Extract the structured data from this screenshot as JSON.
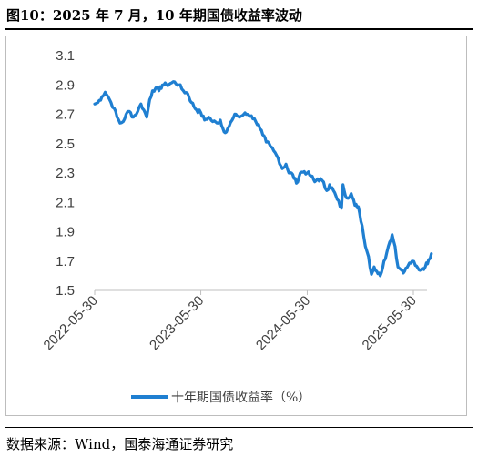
{
  "header": {
    "title": "图10：2025 年 7 月，10 年期国债收益率波动"
  },
  "footer": {
    "source": "数据来源：Wind，国泰海通证券研究"
  },
  "colors": {
    "series": "#1f7fd1",
    "axis": "#bfbfbf",
    "text": "#404040"
  },
  "chart_data": {
    "type": "line",
    "title": "",
    "xlabel": "",
    "ylabel": "",
    "ylim": [
      1.5,
      3.1
    ],
    "yticks": [
      "3.1",
      "2.9",
      "2.7",
      "2.5",
      "2.3",
      "2.1",
      "1.9",
      "1.7",
      "1.5"
    ],
    "xticks": [
      "2022-05-30",
      "2023-05-30",
      "2024-05-30",
      "2025-05-30"
    ],
    "xlim": [
      "2022-05-30",
      "2025-07-31"
    ],
    "grid": false,
    "legend": "bottom",
    "series": [
      {
        "name": "十年期国债收益率（%）",
        "points": [
          [
            "2022-05-30",
            2.77
          ],
          [
            "2022-06-10",
            2.78
          ],
          [
            "2022-06-24",
            2.82
          ],
          [
            "2022-07-05",
            2.85
          ],
          [
            "2022-07-15",
            2.82
          ],
          [
            "2022-07-25",
            2.78
          ],
          [
            "2022-08-05",
            2.74
          ],
          [
            "2022-08-15",
            2.68
          ],
          [
            "2022-08-25",
            2.64
          ],
          [
            "2022-09-05",
            2.65
          ],
          [
            "2022-09-15",
            2.7
          ],
          [
            "2022-09-26",
            2.72
          ],
          [
            "2022-10-10",
            2.68
          ],
          [
            "2022-10-25",
            2.72
          ],
          [
            "2022-11-05",
            2.77
          ],
          [
            "2022-11-15",
            2.73
          ],
          [
            "2022-11-25",
            2.68
          ],
          [
            "2022-12-05",
            2.8
          ],
          [
            "2022-12-15",
            2.86
          ],
          [
            "2022-12-26",
            2.88
          ],
          [
            "2023-01-06",
            2.86
          ],
          [
            "2023-01-18",
            2.9
          ],
          [
            "2023-02-01",
            2.9
          ],
          [
            "2023-02-15",
            2.91
          ],
          [
            "2023-03-01",
            2.92
          ],
          [
            "2023-03-15",
            2.9
          ],
          [
            "2023-03-31",
            2.86
          ],
          [
            "2023-04-15",
            2.84
          ],
          [
            "2023-04-28",
            2.78
          ],
          [
            "2023-05-15",
            2.73
          ],
          [
            "2023-05-30",
            2.71
          ],
          [
            "2023-06-12",
            2.66
          ],
          [
            "2023-06-26",
            2.68
          ],
          [
            "2023-07-10",
            2.65
          ],
          [
            "2023-07-25",
            2.64
          ],
          [
            "2023-08-05",
            2.66
          ],
          [
            "2023-08-18",
            2.58
          ],
          [
            "2023-08-30",
            2.6
          ],
          [
            "2023-09-15",
            2.66
          ],
          [
            "2023-09-28",
            2.7
          ],
          [
            "2023-10-10",
            2.68
          ],
          [
            "2023-10-25",
            2.7
          ],
          [
            "2023-11-06",
            2.7
          ],
          [
            "2023-11-20",
            2.69
          ],
          [
            "2023-12-05",
            2.65
          ],
          [
            "2023-12-15",
            2.63
          ],
          [
            "2023-12-29",
            2.56
          ],
          [
            "2024-01-10",
            2.51
          ],
          [
            "2024-01-25",
            2.48
          ],
          [
            "2024-02-05",
            2.45
          ],
          [
            "2024-02-20",
            2.4
          ],
          [
            "2024-03-05",
            2.33
          ],
          [
            "2024-03-18",
            2.36
          ],
          [
            "2024-03-28",
            2.3
          ],
          [
            "2024-04-10",
            2.29
          ],
          [
            "2024-04-23",
            2.23
          ],
          [
            "2024-05-06",
            2.3
          ],
          [
            "2024-05-20",
            2.31
          ],
          [
            "2024-05-30",
            2.3
          ],
          [
            "2024-06-12",
            2.28
          ],
          [
            "2024-06-25",
            2.24
          ],
          [
            "2024-07-05",
            2.26
          ],
          [
            "2024-07-20",
            2.25
          ],
          [
            "2024-08-05",
            2.18
          ],
          [
            "2024-08-15",
            2.22
          ],
          [
            "2024-08-28",
            2.18
          ],
          [
            "2024-09-10",
            2.12
          ],
          [
            "2024-09-25",
            2.06
          ],
          [
            "2024-09-30",
            2.22
          ],
          [
            "2024-10-12",
            2.13
          ],
          [
            "2024-10-28",
            2.16
          ],
          [
            "2024-11-10",
            2.08
          ],
          [
            "2024-11-22",
            2.07
          ],
          [
            "2024-12-05",
            1.94
          ],
          [
            "2024-12-16",
            1.8
          ],
          [
            "2024-12-27",
            1.73
          ],
          [
            "2025-01-06",
            1.61
          ],
          [
            "2025-01-15",
            1.66
          ],
          [
            "2025-01-24",
            1.63
          ],
          [
            "2025-02-05",
            1.6
          ],
          [
            "2025-02-18",
            1.7
          ],
          [
            "2025-02-28",
            1.76
          ],
          [
            "2025-03-10",
            1.83
          ],
          [
            "2025-03-18",
            1.88
          ],
          [
            "2025-03-28",
            1.8
          ],
          [
            "2025-04-07",
            1.66
          ],
          [
            "2025-04-18",
            1.64
          ],
          [
            "2025-04-30",
            1.63
          ],
          [
            "2025-05-12",
            1.67
          ],
          [
            "2025-05-26",
            1.7
          ],
          [
            "2025-06-06",
            1.67
          ],
          [
            "2025-06-18",
            1.64
          ],
          [
            "2025-06-30",
            1.65
          ],
          [
            "2025-07-10",
            1.66
          ],
          [
            "2025-07-22",
            1.71
          ],
          [
            "2025-07-31",
            1.75
          ]
        ]
      }
    ]
  }
}
